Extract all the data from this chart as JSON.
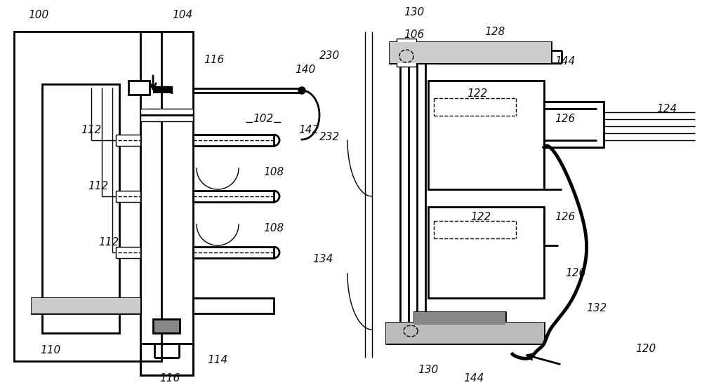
{
  "bg_color": "#ffffff",
  "line_color": "#000000",
  "lw_thin": 1.0,
  "lw_med": 2.0,
  "lw_thick": 3.5,
  "fig_width": 10.0,
  "fig_height": 5.59
}
